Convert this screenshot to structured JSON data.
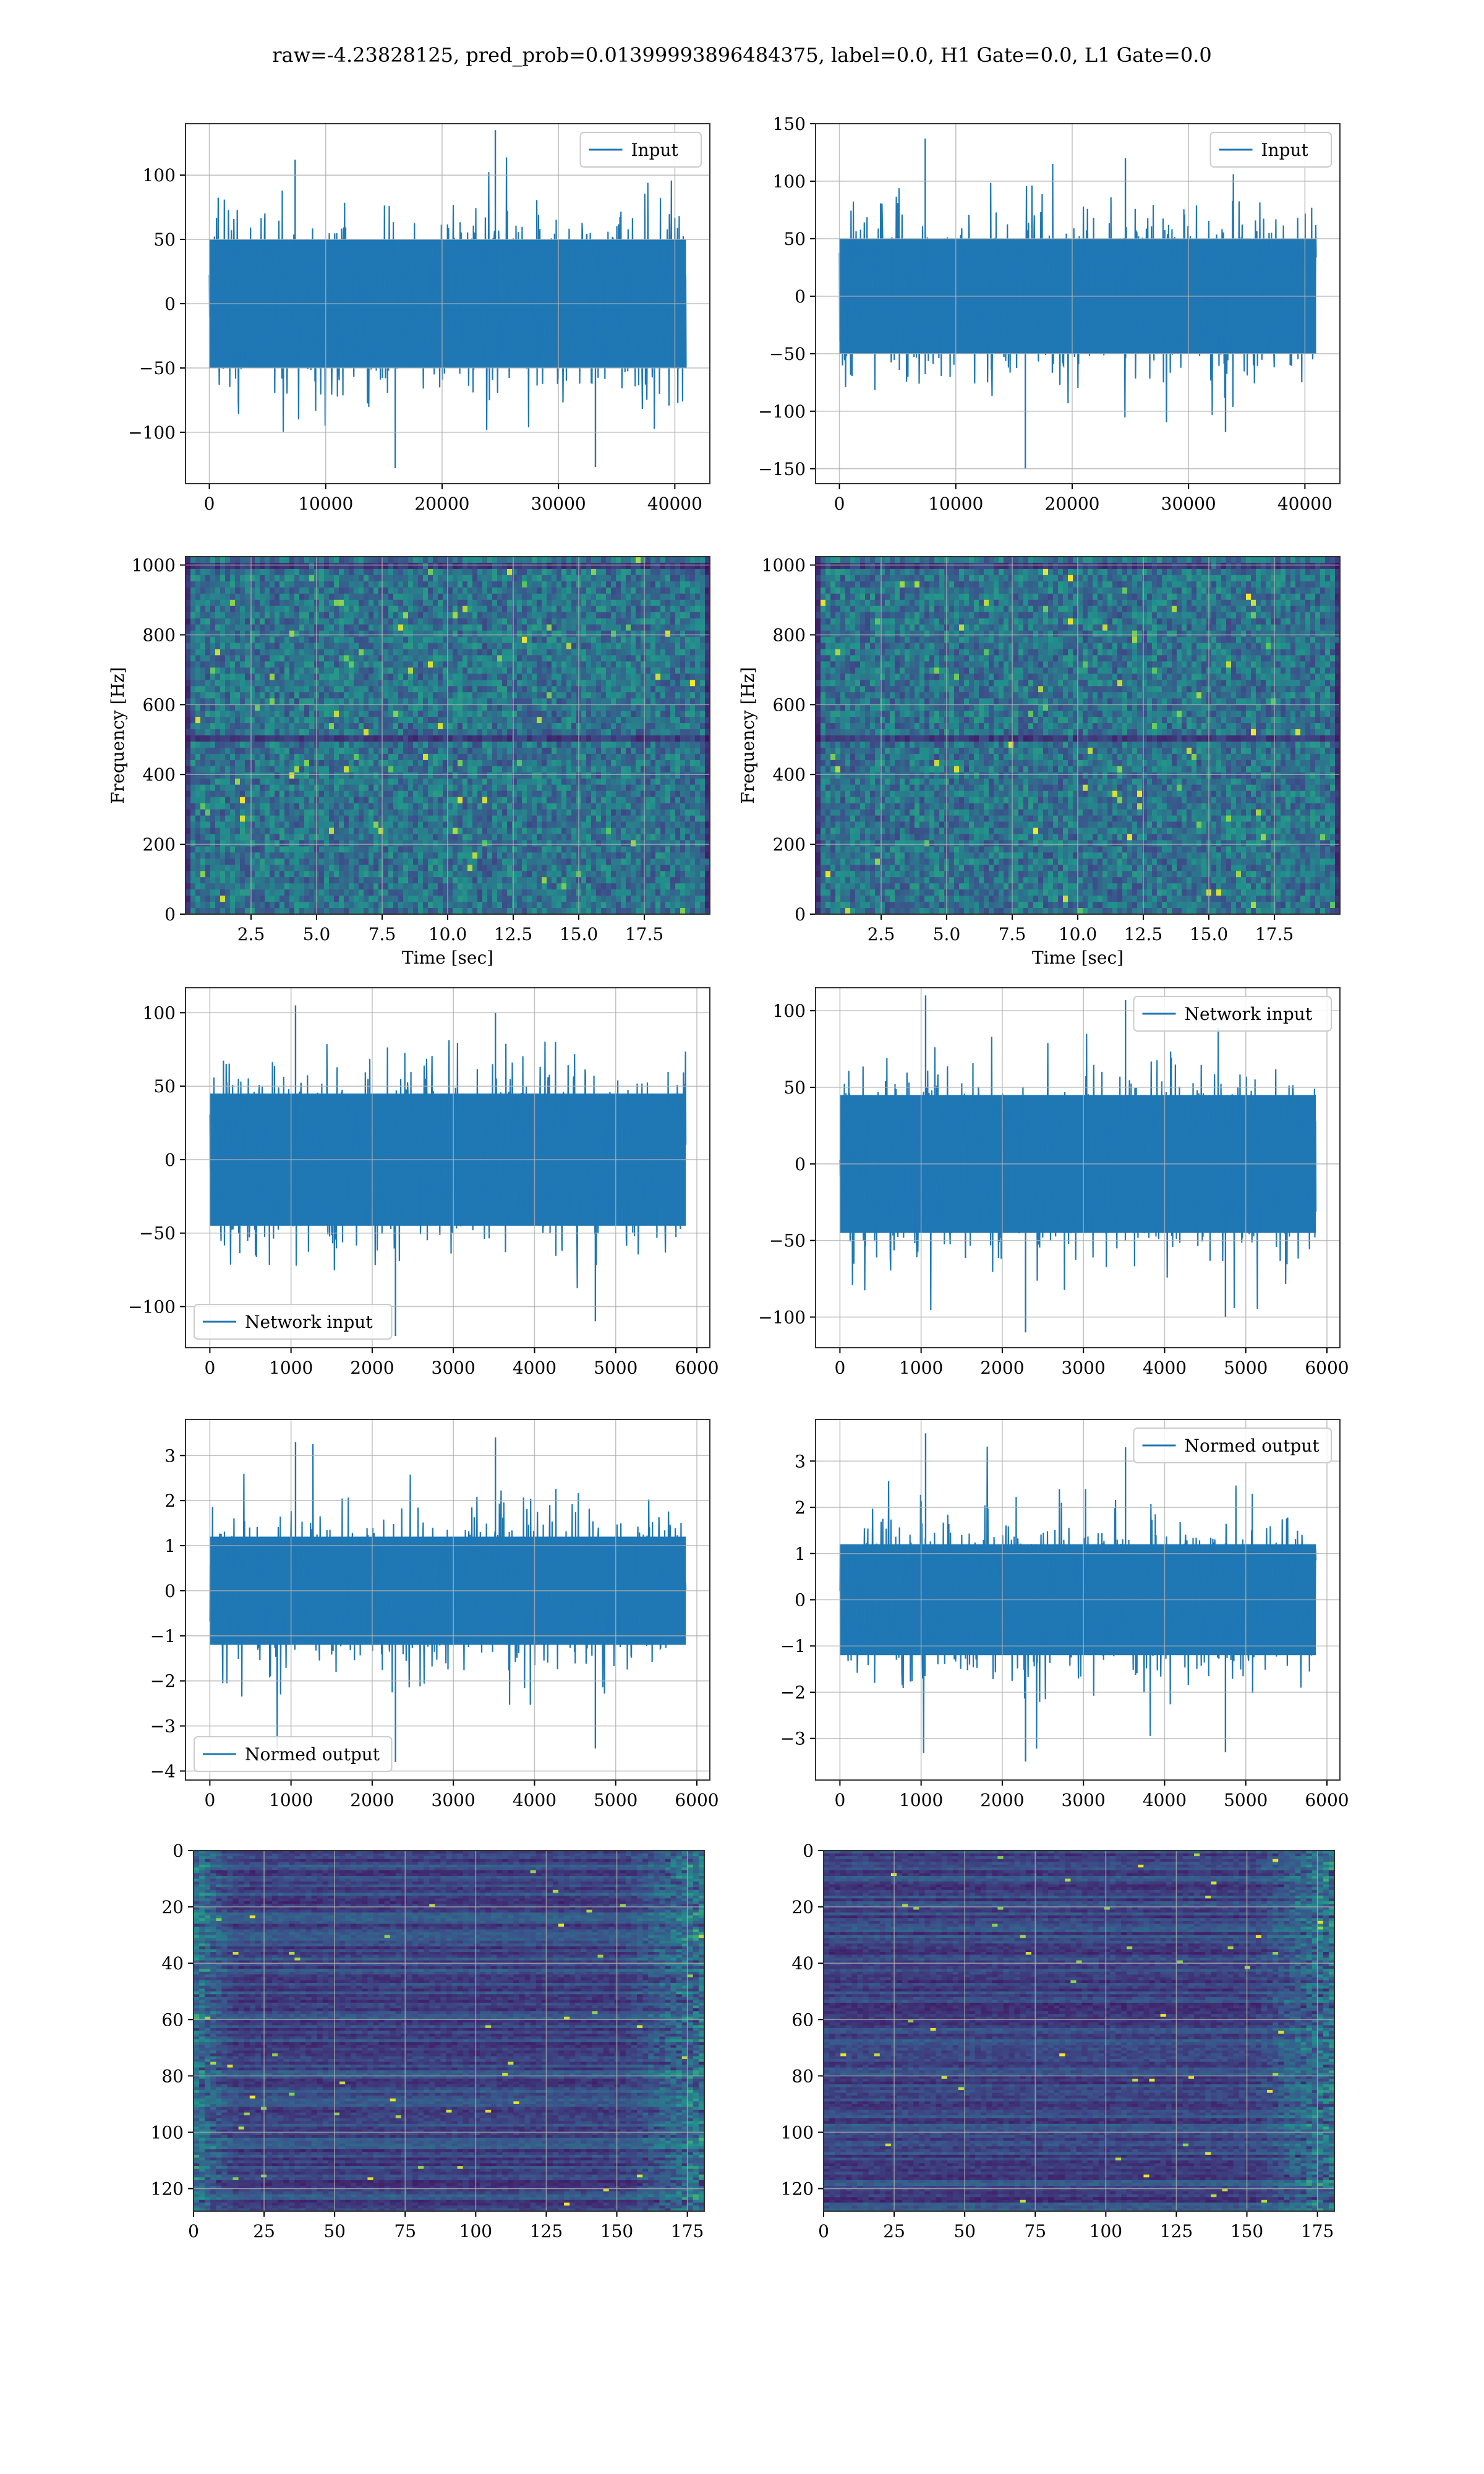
{
  "figure": {
    "suptitle": "raw=-4.23828125, pred_prob=0.01399993896484375, label=0.0, H1 Gate=0.0, L1 Gate=0.0"
  },
  "colors": {
    "line": "#1f77b4",
    "grid": "#b0b0b0",
    "viridis_low": "#440154",
    "viridis_mid": "#3b528b",
    "viridis_teal": "#21918c",
    "viridis_green": "#5ec962",
    "viridis_high": "#fde725"
  },
  "chart_data": [
    {
      "id": "h1-input",
      "type": "line",
      "series": [
        {
          "name": "Input",
          "n_samples": 40960,
          "amplitude_typical": 50,
          "peaks": [
            112,
            -128,
            135,
            -127
          ]
        }
      ],
      "x_ticks": [
        "0",
        "10000",
        "20000",
        "30000",
        "40000"
      ],
      "x_tick_values": [
        0,
        10000,
        20000,
        30000,
        40000
      ],
      "y_ticks": [
        "−100",
        "−50",
        "0",
        "50",
        "100"
      ],
      "y_tick_values": [
        -100,
        -50,
        0,
        50,
        100
      ],
      "xlim": [
        -2048,
        43008
      ],
      "ylim": [
        -140,
        140
      ],
      "legend": "upper right",
      "grid": true
    },
    {
      "id": "l1-input",
      "type": "line",
      "series": [
        {
          "name": "Input",
          "n_samples": 40960,
          "amplitude_typical": 50,
          "peaks": [
            137,
            -150,
            120,
            -118
          ]
        }
      ],
      "x_ticks": [
        "0",
        "10000",
        "20000",
        "30000",
        "40000"
      ],
      "x_tick_values": [
        0,
        10000,
        20000,
        30000,
        40000
      ],
      "y_ticks": [
        "−150",
        "−100",
        "−50",
        "0",
        "50",
        "100",
        "150"
      ],
      "y_tick_values": [
        -150,
        -100,
        -50,
        0,
        50,
        100,
        150
      ],
      "xlim": [
        -2048,
        43008
      ],
      "ylim": [
        -163,
        150
      ],
      "legend": "upper right",
      "grid": true
    },
    {
      "id": "h1-spectrogram",
      "type": "heatmap",
      "xlabel": "Time [sec]",
      "ylabel": "Frequency [Hz]",
      "x_ticks": [
        "2.5",
        "5.0",
        "7.5",
        "10.0",
        "12.5",
        "15.0",
        "17.5"
      ],
      "x_tick_values": [
        2.5,
        5,
        7.5,
        10,
        12.5,
        15,
        17.5
      ],
      "y_ticks": [
        "0",
        "200",
        "400",
        "600",
        "800",
        "1000"
      ],
      "y_tick_values": [
        0,
        200,
        400,
        600,
        800,
        1000
      ],
      "xlim": [
        0,
        20
      ],
      "ylim": [
        0,
        1024
      ],
      "dark_bands_hz": [
        500,
        1000
      ],
      "grid": true
    },
    {
      "id": "l1-spectrogram",
      "type": "heatmap",
      "xlabel": "Time [sec]",
      "ylabel": "Frequency [Hz]",
      "x_ticks": [
        "2.5",
        "5.0",
        "7.5",
        "10.0",
        "12.5",
        "15.0",
        "17.5"
      ],
      "x_tick_values": [
        2.5,
        5,
        7.5,
        10,
        12.5,
        15,
        17.5
      ],
      "y_ticks": [
        "0",
        "200",
        "400",
        "600",
        "800",
        "1000"
      ],
      "y_tick_values": [
        0,
        200,
        400,
        600,
        800,
        1000
      ],
      "xlim": [
        0,
        20
      ],
      "ylim": [
        0,
        1024
      ],
      "dark_bands_hz": [
        500,
        1000
      ],
      "grid": true
    },
    {
      "id": "h1-network-input",
      "type": "line",
      "series": [
        {
          "name": "Network input",
          "n_samples": 5864,
          "amplitude_typical": 45,
          "peaks": [
            105,
            -120,
            100,
            -110
          ]
        }
      ],
      "x_ticks": [
        "0",
        "1000",
        "2000",
        "3000",
        "4000",
        "5000",
        "6000"
      ],
      "x_tick_values": [
        0,
        1000,
        2000,
        3000,
        4000,
        5000,
        6000
      ],
      "y_ticks": [
        "−100",
        "−50",
        "0",
        "50",
        "100"
      ],
      "y_tick_values": [
        -100,
        -50,
        0,
        50,
        100
      ],
      "xlim": [
        -300,
        6160
      ],
      "ylim": [
        -128,
        117
      ],
      "legend": "lower left",
      "grid": true
    },
    {
      "id": "l1-network-input",
      "type": "line",
      "series": [
        {
          "name": "Network input",
          "n_samples": 5864,
          "amplitude_typical": 45,
          "peaks": [
            110,
            -110,
            107,
            -100
          ]
        }
      ],
      "x_ticks": [
        "0",
        "1000",
        "2000",
        "3000",
        "4000",
        "5000",
        "6000"
      ],
      "x_tick_values": [
        0,
        1000,
        2000,
        3000,
        4000,
        5000,
        6000
      ],
      "y_ticks": [
        "−100",
        "−50",
        "0",
        "50",
        "100"
      ],
      "y_tick_values": [
        -100,
        -50,
        0,
        50,
        100
      ],
      "xlim": [
        -300,
        6160
      ],
      "ylim": [
        -120,
        115
      ],
      "legend": "upper right",
      "grid": true
    },
    {
      "id": "h1-normed-output",
      "type": "line",
      "series": [
        {
          "name": "Normed output",
          "n_samples": 5864,
          "amplitude_typical": 1.2,
          "peaks": [
            3.3,
            -3.8,
            3.4,
            -3.5
          ]
        }
      ],
      "x_ticks": [
        "0",
        "1000",
        "2000",
        "3000",
        "4000",
        "5000",
        "6000"
      ],
      "x_tick_values": [
        0,
        1000,
        2000,
        3000,
        4000,
        5000,
        6000
      ],
      "y_ticks": [
        "−4",
        "−3",
        "−2",
        "−1",
        "0",
        "1",
        "2",
        "3"
      ],
      "y_tick_values": [
        -4,
        -3,
        -2,
        -1,
        0,
        1,
        2,
        3
      ],
      "xlim": [
        -300,
        6160
      ],
      "ylim": [
        -4.2,
        3.8
      ],
      "legend": "lower left",
      "grid": true
    },
    {
      "id": "l1-normed-output",
      "type": "line",
      "series": [
        {
          "name": "Normed output",
          "n_samples": 5864,
          "amplitude_typical": 1.2,
          "peaks": [
            3.6,
            -3.5,
            3.3,
            -3.3
          ]
        }
      ],
      "x_ticks": [
        "0",
        "1000",
        "2000",
        "3000",
        "4000",
        "5000",
        "6000"
      ],
      "x_tick_values": [
        0,
        1000,
        2000,
        3000,
        4000,
        5000,
        6000
      ],
      "y_ticks": [
        "−3",
        "−2",
        "−1",
        "0",
        "1",
        "2",
        "3"
      ],
      "y_tick_values": [
        -3,
        -2,
        -1,
        0,
        1,
        2,
        3
      ],
      "xlim": [
        -300,
        6160
      ],
      "ylim": [
        -3.9,
        3.9
      ],
      "legend": "upper right",
      "grid": true
    },
    {
      "id": "h1-feature-map",
      "type": "heatmap",
      "x_ticks": [
        "0",
        "25",
        "50",
        "75",
        "100",
        "125",
        "150",
        "175"
      ],
      "x_tick_values": [
        0,
        25,
        50,
        75,
        100,
        125,
        150,
        175
      ],
      "y_ticks": [
        "0",
        "20",
        "40",
        "60",
        "80",
        "100",
        "120"
      ],
      "y_tick_values": [
        0,
        20,
        40,
        60,
        80,
        100,
        120
      ],
      "xlim": [
        0,
        181
      ],
      "ylim": [
        0,
        128
      ],
      "y_inverted": true,
      "bright_edges": true,
      "grid": true
    },
    {
      "id": "l1-feature-map",
      "type": "heatmap",
      "x_ticks": [
        "0",
        "25",
        "50",
        "75",
        "100",
        "125",
        "150",
        "175"
      ],
      "x_tick_values": [
        0,
        25,
        50,
        75,
        100,
        125,
        150,
        175
      ],
      "y_ticks": [
        "0",
        "20",
        "40",
        "60",
        "80",
        "100",
        "120"
      ],
      "y_tick_values": [
        0,
        20,
        40,
        60,
        80,
        100,
        120
      ],
      "xlim": [
        0,
        181
      ],
      "ylim": [
        0,
        128
      ],
      "y_inverted": true,
      "bright_edges": true,
      "grid": true
    }
  ]
}
